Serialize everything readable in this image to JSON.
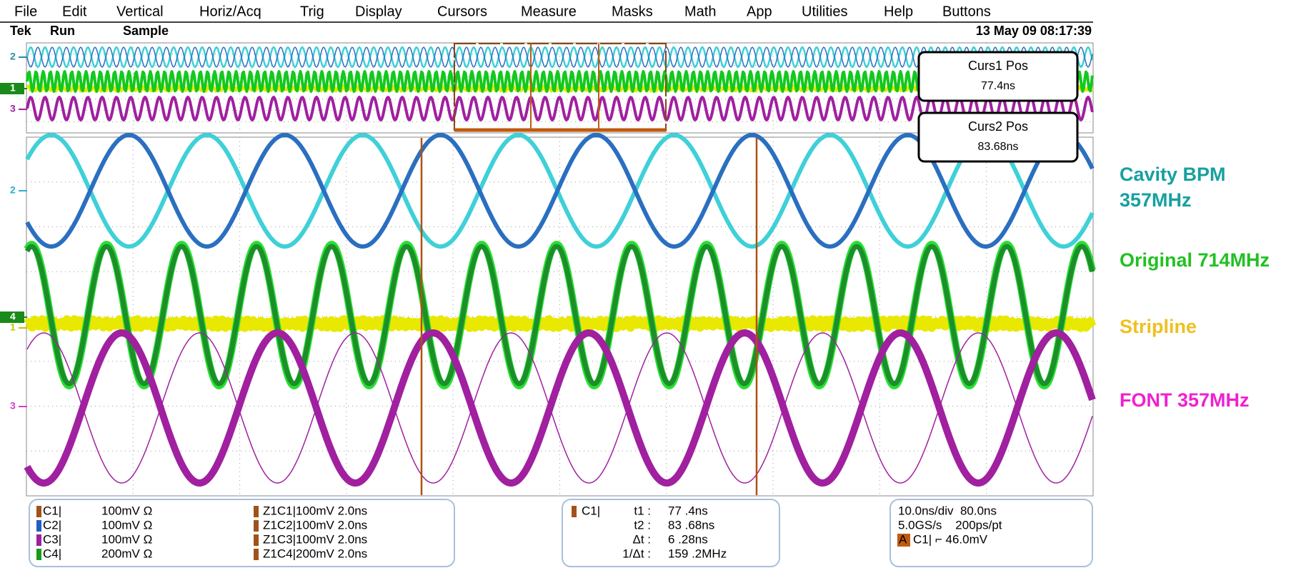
{
  "menu": [
    "File",
    "Edit",
    "Vertical",
    "Horiz/Acq",
    "Trig",
    "Display",
    "Cursors",
    "Measure",
    "Masks",
    "Math",
    "App",
    "Utilities",
    "Help",
    "Buttons"
  ],
  "status": {
    "brand": "Tek",
    "state": "Run",
    "mode": "Sample",
    "datetime": "13 May 09 08:17:39"
  },
  "cursor_boxes": [
    {
      "title": "Curs1 Pos",
      "value": "77.4ns"
    },
    {
      "title": "Curs2 Pos",
      "value": "83.68ns"
    }
  ],
  "overview_markers": [
    "2",
    "1",
    "3"
  ],
  "main_markers": [
    "2",
    "4",
    "1",
    "3"
  ],
  "signal_labels": [
    [
      "Cavity BPM",
      "357MHz"
    ],
    [
      "Original 714MHz"
    ],
    [
      "Stripline"
    ],
    [
      "FONT 357MHz"
    ]
  ],
  "channels": [
    {
      "name": "C1|",
      "scale": "100mV Ω",
      "zoom": "Z1C1|100mV 2.0ns"
    },
    {
      "name": "C2|",
      "scale": "100mV Ω",
      "zoom": "Z1C2|100mV 2.0ns"
    },
    {
      "name": "C3|",
      "scale": "100mV Ω",
      "zoom": "Z1C3|100mV 2.0ns"
    },
    {
      "name": "C4|",
      "scale": "200mV Ω",
      "zoom": "Z1C4|200mV 2.0ns"
    }
  ],
  "cursor_readout": {
    "channel": "C1|",
    "rows": [
      [
        "t1 :",
        "77 .4ns"
      ],
      [
        "t2 :",
        "83 .68ns"
      ],
      [
        "Δt :",
        "6 .28ns"
      ],
      [
        "1/Δt :",
        "159 .2MHz"
      ]
    ]
  },
  "timebase": {
    "lines": [
      "10.0ns/div  80.0ns",
      "5.0GS/s    200ps/pt"
    ],
    "trigger_source": "A",
    "trigger": "C1| ⌐ 46.0mV"
  }
}
